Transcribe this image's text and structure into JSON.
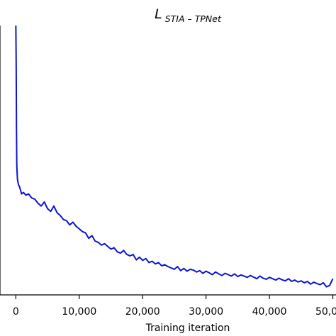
{
  "chart_data": {
    "type": "line",
    "title_main": "L",
    "title_sub": "STIA – TPNet",
    "xlabel": "Training iteration",
    "ylabel": "",
    "xlim": [
      -2500,
      50500
    ],
    "ylim": [
      0.0,
      1.0
    ],
    "x_ticks": [
      {
        "value": 0,
        "label": "0"
      },
      {
        "value": 10000,
        "label": "10,000"
      },
      {
        "value": 20000,
        "label": "20,000"
      },
      {
        "value": 30000,
        "label": "30,000"
      },
      {
        "value": 40000,
        "label": "40,000"
      },
      {
        "value": 50000,
        "label": "50,000"
      }
    ],
    "grid": false,
    "color": "#0a14d8",
    "series": [
      {
        "x": [
          0,
          50,
          100,
          150,
          250,
          400,
          600,
          900,
          1200,
          1600,
          2000,
          2500,
          3000,
          3500,
          4000,
          4500,
          5000,
          5500,
          6000,
          6500,
          7000,
          7500,
          8000,
          8500,
          9000,
          9500,
          10000,
          10500,
          11000,
          11500,
          12000,
          12500,
          13000,
          13500,
          14000,
          14500,
          15000,
          15500,
          16000,
          16500,
          17000,
          17500,
          18000,
          18500,
          19000,
          19500,
          20000,
          20500,
          21000,
          21500,
          22000,
          22500,
          23000,
          23500,
          24000,
          24500,
          25000,
          25500,
          26000,
          26500,
          27000,
          27500,
          28000,
          28500,
          29000,
          29500,
          30000,
          30500,
          31000,
          31500,
          32000,
          32500,
          33000,
          33500,
          34000,
          34500,
          35000,
          35500,
          36000,
          36500,
          37000,
          37500,
          38000,
          38500,
          39000,
          39500,
          40000,
          40500,
          41000,
          41500,
          42000,
          42500,
          43000,
          43500,
          44000,
          44500,
          45000,
          45500,
          46000,
          46500,
          47000,
          47500,
          48000,
          48500,
          49000,
          49500,
          50000
        ],
        "values": [
          1.0,
          0.86,
          0.62,
          0.48,
          0.43,
          0.41,
          0.4,
          0.375,
          0.38,
          0.37,
          0.375,
          0.36,
          0.355,
          0.34,
          0.33,
          0.345,
          0.32,
          0.31,
          0.33,
          0.305,
          0.295,
          0.28,
          0.275,
          0.26,
          0.27,
          0.255,
          0.245,
          0.235,
          0.23,
          0.21,
          0.22,
          0.2,
          0.195,
          0.185,
          0.19,
          0.18,
          0.17,
          0.175,
          0.16,
          0.155,
          0.165,
          0.15,
          0.145,
          0.15,
          0.13,
          0.14,
          0.128,
          0.135,
          0.12,
          0.125,
          0.115,
          0.12,
          0.108,
          0.112,
          0.105,
          0.1,
          0.095,
          0.105,
          0.09,
          0.098,
          0.088,
          0.095,
          0.092,
          0.085,
          0.09,
          0.08,
          0.088,
          0.082,
          0.075,
          0.085,
          0.078,
          0.072,
          0.08,
          0.075,
          0.07,
          0.078,
          0.068,
          0.074,
          0.07,
          0.065,
          0.072,
          0.066,
          0.06,
          0.07,
          0.062,
          0.058,
          0.065,
          0.06,
          0.055,
          0.062,
          0.056,
          0.052,
          0.06,
          0.05,
          0.055,
          0.048,
          0.052,
          0.045,
          0.05,
          0.04,
          0.047,
          0.042,
          0.038,
          0.045,
          0.03,
          0.035,
          0.06
        ]
      }
    ]
  }
}
